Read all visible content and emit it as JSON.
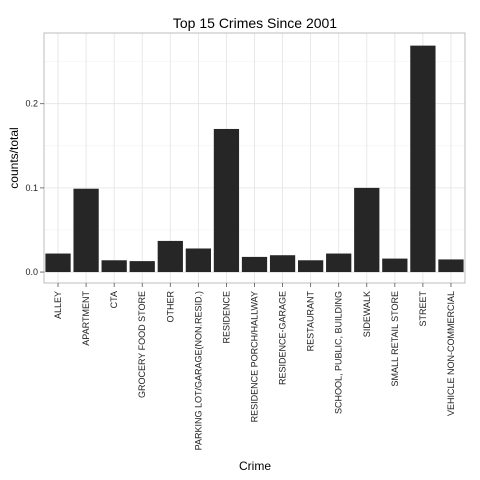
{
  "chart_data": {
    "type": "bar",
    "title": "Top 15   Crimes Since 2001",
    "xlabel": "Crime",
    "ylabel": "counts/total",
    "categories": [
      "ALLEY",
      "APARTMENT",
      "CTA",
      "GROCERY FOOD STORE",
      "OTHER",
      "PARKING LOT/GARAGE(NON.RESID.)",
      "RESIDENCE",
      "RESIDENCE PORCH/HALLWAY",
      "RESIDENCE-GARAGE",
      "RESTAURANT",
      "SCHOOL, PUBLIC, BUILDING",
      "SIDEWALK",
      "SMALL RETAIL STORE",
      "STREET",
      "VEHICLE NON-COMMERCIAL"
    ],
    "values": [
      0.022,
      0.099,
      0.014,
      0.013,
      0.037,
      0.028,
      0.17,
      0.018,
      0.02,
      0.014,
      0.022,
      0.1,
      0.016,
      0.269,
      0.015
    ],
    "yticks": [
      0.0,
      0.1,
      0.2
    ],
    "ytick_labels": [
      "0.0",
      "0.1",
      "0.2"
    ],
    "ylim": [
      -0.013,
      0.284
    ],
    "grid": true,
    "legend": "none",
    "bar_color": "#262626"
  }
}
